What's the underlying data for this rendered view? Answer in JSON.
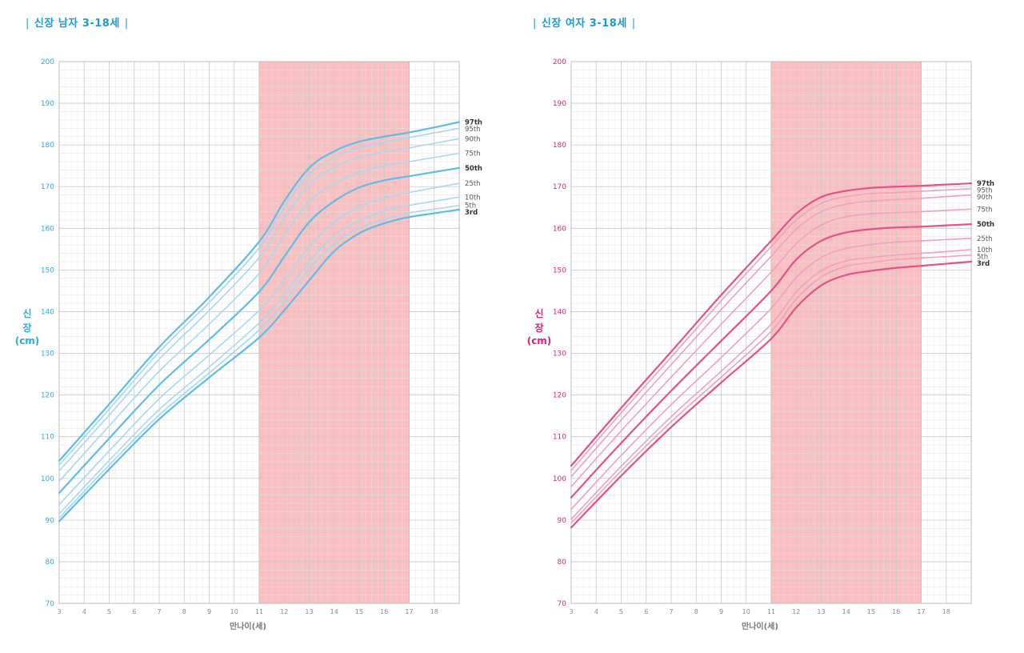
{
  "panels": [
    {
      "title": "신장 남자 3-18세",
      "color": "#4db8e8"
    },
    {
      "title": "신장 여자 3-18세",
      "color": "#e8407a"
    }
  ],
  "colors": {
    "boys_line": "#5bbde8",
    "boys_line_light": "#a8d8f0",
    "boys_axis": "#29abe2",
    "girls_line": "#e6508a",
    "girls_line_light": "#f0a0c0",
    "girls_axis": "#e0207a",
    "highlight": "#f7b5b5",
    "highlight_border": "#e88a8a",
    "grid": "#e3e3e3",
    "grid_major": "#c8c8c8",
    "title_blue": "#1a9ad6"
  },
  "chart_data": [
    {
      "type": "line",
      "title": "신장 남자 3-18세",
      "xlabel": "만나이(세)",
      "ylabel_lines": [
        "신",
        "장",
        "(cm)"
      ],
      "xlim": [
        3,
        19
      ],
      "ylim": [
        70,
        200
      ],
      "xticks": [
        3,
        4,
        5,
        6,
        7,
        8,
        9,
        10,
        11,
        12,
        13,
        14,
        15,
        16,
        17,
        18
      ],
      "yticks": [
        70,
        80,
        90,
        100,
        110,
        120,
        130,
        140,
        150,
        160,
        170,
        180,
        190,
        200
      ],
      "highlight_range": [
        11,
        17
      ],
      "grid": true,
      "x": [
        3,
        5,
        7,
        9,
        11,
        12,
        13,
        14,
        15,
        16,
        17,
        18,
        19
      ],
      "series": [
        {
          "name": "97th",
          "bold": true,
          "values": [
            104.2,
            117.8,
            131.5,
            143.5,
            156.8,
            166.5,
            174.5,
            178.5,
            180.8,
            182.0,
            183.0,
            184.2,
            185.5
          ]
        },
        {
          "name": "95th",
          "bold": false,
          "values": [
            103.2,
            116.6,
            130.3,
            142.2,
            155.3,
            165.0,
            173.0,
            177.0,
            179.3,
            180.7,
            181.8,
            182.9,
            184.0
          ]
        },
        {
          "name": "90th",
          "bold": false,
          "values": [
            101.8,
            115.2,
            128.6,
            140.3,
            153.0,
            162.5,
            170.5,
            174.7,
            177.0,
            178.3,
            179.3,
            180.4,
            181.5
          ]
        },
        {
          "name": "75th",
          "bold": false,
          "values": [
            99.3,
            112.6,
            125.7,
            137.0,
            149.2,
            158.5,
            166.5,
            170.8,
            173.3,
            175.0,
            176.0,
            177.0,
            178.0
          ]
        },
        {
          "name": "50th",
          "bold": true,
          "values": [
            96.5,
            109.6,
            122.4,
            133.3,
            144.8,
            153.2,
            161.5,
            166.5,
            169.8,
            171.5,
            172.5,
            173.5,
            174.5
          ]
        },
        {
          "name": "25th",
          "bold": false,
          "values": [
            93.7,
            106.6,
            119.1,
            129.6,
            140.3,
            147.5,
            155.5,
            161.5,
            165.2,
            167.3,
            168.6,
            169.7,
            170.8
          ]
        },
        {
          "name": "10th",
          "bold": false,
          "values": [
            91.5,
            104.3,
            116.5,
            126.7,
            137.3,
            144.2,
            152.0,
            158.3,
            161.8,
            164.2,
            165.5,
            166.5,
            167.5
          ]
        },
        {
          "name": "5th",
          "bold": false,
          "values": [
            90.5,
            103.2,
            115.2,
            125.3,
            135.6,
            142.3,
            150.2,
            156.3,
            160.0,
            162.2,
            163.7,
            164.6,
            165.5
          ]
        },
        {
          "name": "3rd",
          "bold": true,
          "values": [
            89.7,
            102.2,
            114.2,
            124.2,
            133.8,
            140.3,
            147.5,
            154.5,
            158.8,
            161.2,
            162.7,
            163.6,
            164.5
          ]
        }
      ]
    },
    {
      "type": "line",
      "title": "신장 여자 3-18세",
      "xlabel": "만나이(세)",
      "ylabel_lines": [
        "신",
        "장",
        "(cm)"
      ],
      "xlim": [
        3,
        19
      ],
      "ylim": [
        70,
        200
      ],
      "xticks": [
        3,
        4,
        5,
        6,
        7,
        8,
        9,
        10,
        11,
        12,
        13,
        14,
        15,
        16,
        17,
        18
      ],
      "yticks": [
        70,
        80,
        90,
        100,
        110,
        120,
        130,
        140,
        150,
        160,
        170,
        180,
        190,
        200
      ],
      "highlight_range": [
        11,
        17
      ],
      "grid": true,
      "x": [
        3,
        5,
        7,
        9,
        11,
        12,
        13,
        14,
        15,
        16,
        17,
        18,
        19
      ],
      "series": [
        {
          "name": "97th",
          "bold": true,
          "values": [
            103.0,
            116.9,
            130.4,
            144.0,
            157.0,
            163.5,
            167.5,
            169.0,
            169.7,
            170.0,
            170.2,
            170.5,
            170.8
          ]
        },
        {
          "name": "95th",
          "bold": false,
          "values": [
            101.9,
            115.7,
            129.1,
            142.6,
            155.6,
            162.0,
            166.0,
            167.6,
            168.3,
            168.6,
            168.9,
            169.2,
            169.5
          ]
        },
        {
          "name": "90th",
          "bold": false,
          "values": [
            100.4,
            114.0,
            127.3,
            140.5,
            153.3,
            159.8,
            164.0,
            165.8,
            166.5,
            166.9,
            167.2,
            167.6,
            168.0
          ]
        },
        {
          "name": "75th",
          "bold": false,
          "values": [
            98.0,
            111.4,
            124.3,
            137.0,
            149.5,
            156.3,
            160.8,
            162.8,
            163.5,
            163.8,
            164.0,
            164.3,
            164.6
          ]
        },
        {
          "name": "50th",
          "bold": true,
          "values": [
            95.4,
            108.5,
            121.0,
            133.0,
            145.0,
            152.5,
            157.0,
            159.0,
            159.8,
            160.2,
            160.4,
            160.7,
            161.0
          ]
        },
        {
          "name": "25th",
          "bold": false,
          "values": [
            92.6,
            105.5,
            117.7,
            129.0,
            140.8,
            148.2,
            153.0,
            155.2,
            156.1,
            156.7,
            157.0,
            157.3,
            157.6
          ]
        },
        {
          "name": "10th",
          "bold": false,
          "values": [
            90.2,
            102.9,
            114.8,
            125.7,
            137.0,
            144.7,
            149.8,
            152.2,
            153.0,
            153.6,
            154.0,
            154.4,
            154.9
          ]
        },
        {
          "name": "5th",
          "bold": false,
          "values": [
            89.3,
            101.8,
            113.6,
            124.3,
            135.3,
            143.0,
            148.3,
            150.9,
            151.8,
            152.5,
            152.9,
            153.2,
            153.6
          ]
        },
        {
          "name": "3rd",
          "bold": true,
          "values": [
            88.2,
            100.6,
            112.3,
            123.0,
            133.5,
            141.0,
            146.3,
            148.8,
            149.8,
            150.5,
            151.0,
            151.5,
            152.0
          ]
        }
      ]
    }
  ]
}
